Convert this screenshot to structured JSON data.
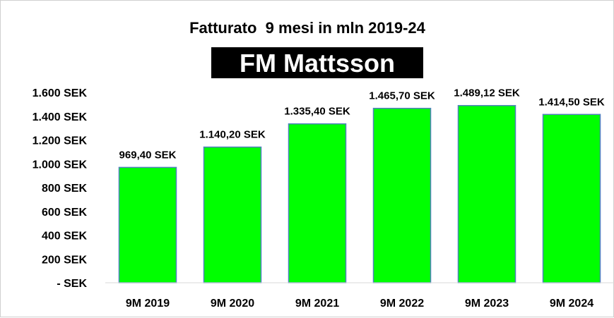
{
  "chart_data": {
    "type": "bar",
    "title": "Fatturato  9 mesi in mln 2019-24",
    "logo_text": "FM Mattsson",
    "categories": [
      "9M 2019",
      "9M 2020",
      "9M 2021",
      "9M 2022",
      "9M 2023",
      "9M 2024"
    ],
    "values": [
      969.4,
      1140.2,
      1335.4,
      1465.7,
      1489.12,
      1414.5
    ],
    "value_labels": [
      "969,40 SEK",
      "1.140,20 SEK",
      "1.335,40 SEK",
      "1.465,70 SEK",
      "1.489,12 SEK",
      "1.414,50 SEK"
    ],
    "y_ticks": [
      0,
      200,
      400,
      600,
      800,
      1000,
      1200,
      1400,
      1600
    ],
    "y_tick_labels": [
      "- SEK",
      "200 SEK",
      "400 SEK",
      "600 SEK",
      "800 SEK",
      "1.000 SEK",
      "1.200 SEK",
      "1.400 SEK",
      "1.600 SEK"
    ],
    "ylim": [
      0,
      1600
    ],
    "xlabel": "",
    "ylabel": "",
    "grid": false,
    "legend": "none",
    "bar_color": "#00ff00",
    "bar_edge_color": "#4f81bd",
    "logo_bg_color": "#000000"
  }
}
